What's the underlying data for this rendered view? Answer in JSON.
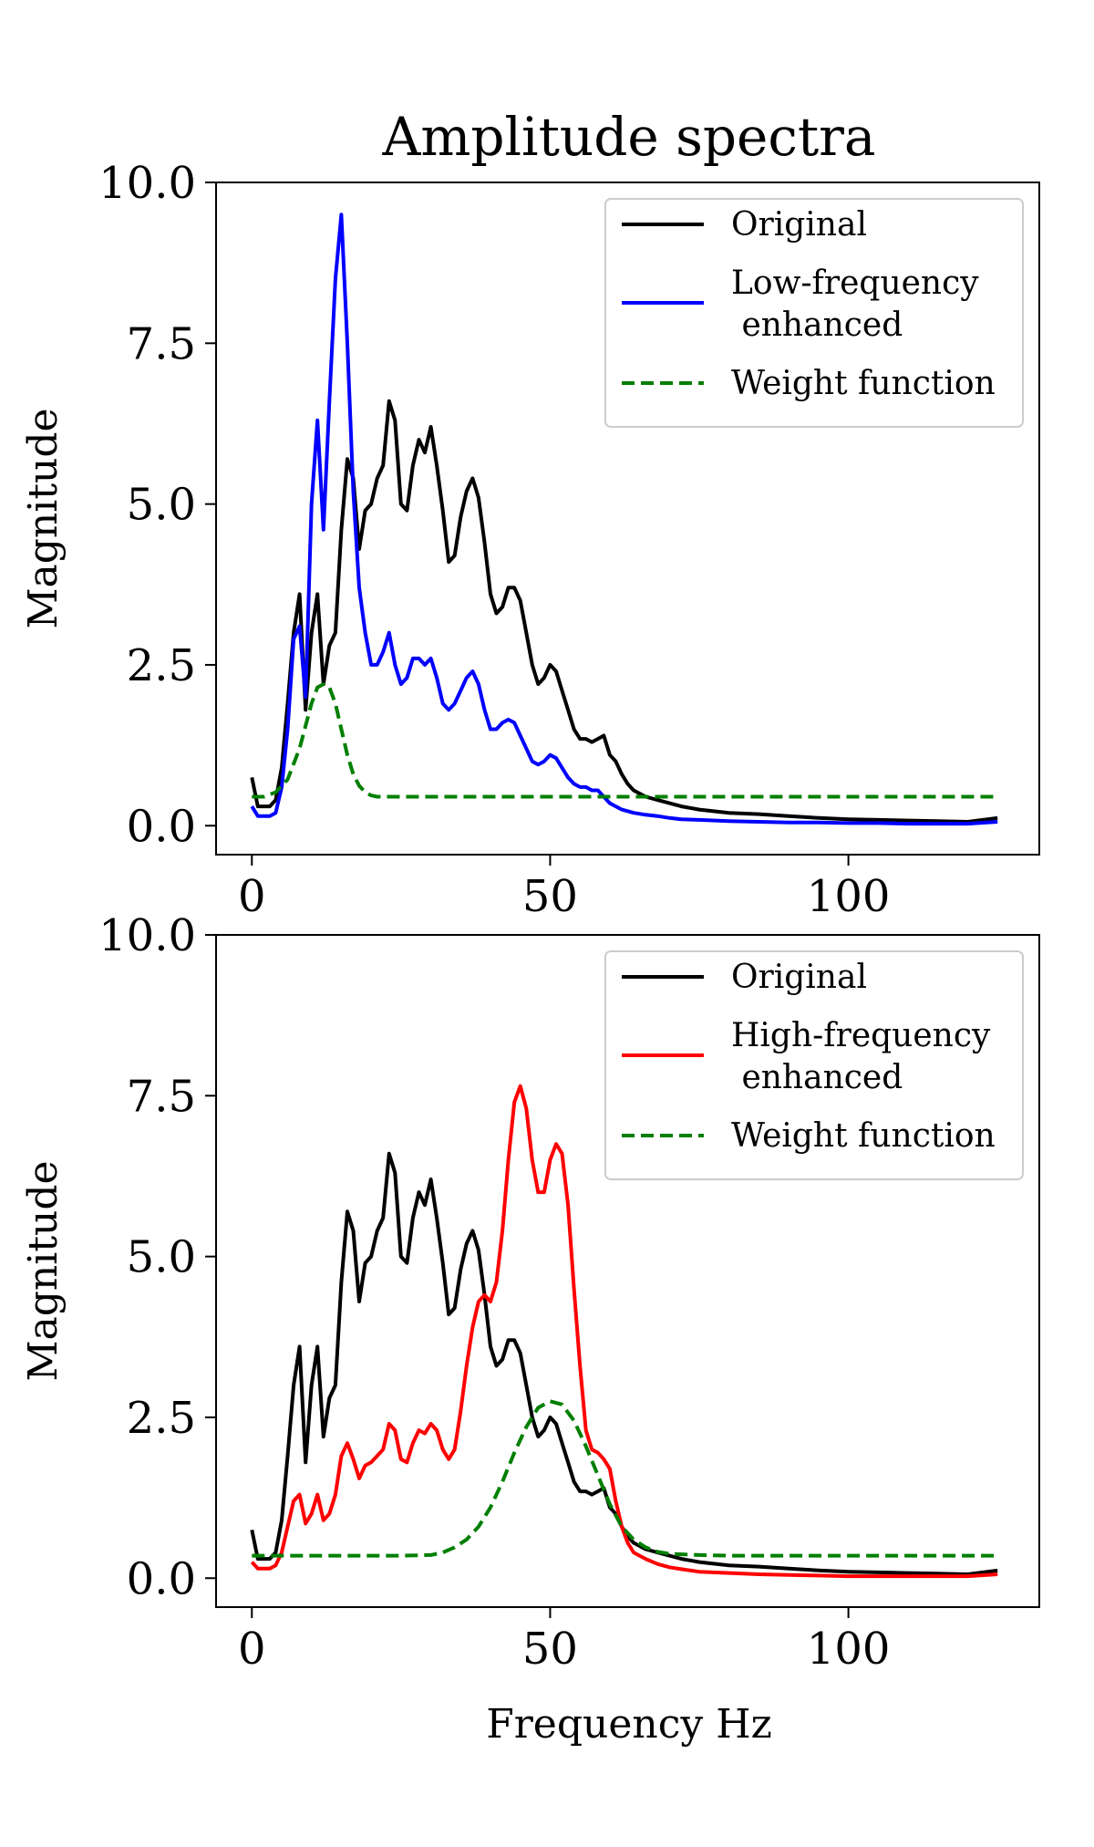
{
  "chart_data": [
    {
      "type": "line",
      "title": "Amplitude spectra",
      "xlabel": "",
      "ylabel": "Magnitude",
      "xlim": [
        -6,
        132
      ],
      "ylim": [
        -0.45,
        10.0
      ],
      "xticks": [
        "0",
        "50",
        "100"
      ],
      "yticks": [
        "0.0",
        "2.5",
        "5.0",
        "7.5",
        "10.0"
      ],
      "legend_position": "top-right",
      "series": [
        {
          "name": "Original",
          "color": "#000000",
          "dash": "solid",
          "x": [
            0,
            1,
            2,
            3,
            4,
            5,
            6,
            7,
            8,
            9,
            10,
            11,
            12,
            13,
            14,
            15,
            16,
            17,
            18,
            19,
            20,
            21,
            22,
            23,
            24,
            25,
            26,
            27,
            28,
            29,
            30,
            31,
            32,
            33,
            34,
            35,
            36,
            37,
            38,
            39,
            40,
            41,
            42,
            43,
            44,
            45,
            46,
            47,
            48,
            49,
            50,
            51,
            52,
            53,
            54,
            55,
            56,
            57,
            58,
            59,
            60,
            61,
            62,
            63,
            64,
            65,
            66,
            68,
            70,
            72,
            75,
            80,
            85,
            90,
            95,
            100,
            105,
            110,
            115,
            120,
            125
          ],
          "y": [
            0.75,
            0.3,
            0.3,
            0.3,
            0.4,
            0.9,
            1.9,
            3.0,
            3.6,
            1.8,
            3.0,
            3.6,
            2.2,
            2.8,
            3.0,
            4.6,
            5.7,
            5.4,
            4.3,
            4.9,
            5.0,
            5.4,
            5.6,
            6.6,
            6.3,
            5.0,
            4.9,
            5.6,
            6.0,
            5.8,
            6.2,
            5.6,
            4.9,
            4.1,
            4.2,
            4.8,
            5.2,
            5.4,
            5.1,
            4.4,
            3.6,
            3.3,
            3.4,
            3.7,
            3.7,
            3.5,
            3.0,
            2.5,
            2.2,
            2.3,
            2.5,
            2.4,
            2.1,
            1.8,
            1.5,
            1.35,
            1.35,
            1.3,
            1.35,
            1.4,
            1.1,
            1.0,
            0.8,
            0.65,
            0.55,
            0.5,
            0.45,
            0.4,
            0.35,
            0.3,
            0.25,
            0.2,
            0.18,
            0.15,
            0.12,
            0.1,
            0.09,
            0.08,
            0.07,
            0.06,
            0.12
          ]
        },
        {
          "name": "Low-frequency\n enhanced",
          "color": "#0000ff",
          "dash": "solid",
          "x": [
            0,
            1,
            2,
            3,
            4,
            5,
            6,
            7,
            8,
            9,
            10,
            11,
            12,
            13,
            14,
            15,
            16,
            17,
            18,
            19,
            20,
            21,
            22,
            23,
            24,
            25,
            26,
            27,
            28,
            29,
            30,
            31,
            32,
            33,
            34,
            35,
            36,
            37,
            38,
            39,
            40,
            41,
            42,
            43,
            44,
            45,
            46,
            47,
            48,
            49,
            50,
            51,
            52,
            53,
            54,
            55,
            56,
            57,
            58,
            59,
            60,
            62,
            64,
            66,
            68,
            70,
            72,
            75,
            80,
            85,
            90,
            95,
            100,
            105,
            110,
            115,
            120,
            125
          ],
          "y": [
            0.3,
            0.15,
            0.15,
            0.15,
            0.2,
            0.6,
            1.5,
            2.9,
            3.1,
            2.0,
            5.0,
            6.3,
            4.6,
            6.6,
            8.5,
            9.5,
            7.5,
            5.2,
            3.7,
            3.0,
            2.5,
            2.5,
            2.7,
            3.0,
            2.5,
            2.2,
            2.3,
            2.6,
            2.6,
            2.5,
            2.6,
            2.3,
            1.9,
            1.8,
            1.9,
            2.1,
            2.3,
            2.4,
            2.2,
            1.8,
            1.5,
            1.5,
            1.6,
            1.65,
            1.6,
            1.4,
            1.2,
            1.0,
            0.95,
            1.0,
            1.1,
            1.05,
            0.9,
            0.75,
            0.65,
            0.6,
            0.6,
            0.55,
            0.55,
            0.45,
            0.35,
            0.25,
            0.2,
            0.17,
            0.15,
            0.12,
            0.1,
            0.09,
            0.07,
            0.06,
            0.05,
            0.05,
            0.04,
            0.04,
            0.03,
            0.03,
            0.03,
            0.06
          ]
        },
        {
          "name": "Weight function",
          "color": "#007f00",
          "dash": "dashed",
          "x": [
            0,
            2,
            4,
            6,
            8,
            10,
            11,
            12,
            13,
            14,
            15,
            16,
            17,
            18,
            19,
            20,
            21,
            22,
            24,
            26,
            30,
            40,
            60,
            80,
            100,
            125
          ],
          "y": [
            0.45,
            0.45,
            0.52,
            0.72,
            1.2,
            1.9,
            2.15,
            2.2,
            2.15,
            1.9,
            1.5,
            1.1,
            0.8,
            0.62,
            0.52,
            0.47,
            0.45,
            0.45,
            0.45,
            0.45,
            0.45,
            0.45,
            0.45,
            0.45,
            0.45,
            0.45
          ]
        }
      ]
    },
    {
      "type": "line",
      "title": "",
      "xlabel": "Frequency Hz",
      "ylabel": "Magnitude",
      "xlim": [
        -6,
        132
      ],
      "ylim": [
        -0.45,
        10.0
      ],
      "xticks": [
        "0",
        "50",
        "100"
      ],
      "yticks": [
        "0.0",
        "2.5",
        "5.0",
        "7.5",
        "10.0"
      ],
      "legend_position": "top-right",
      "series": [
        {
          "name": "Original",
          "color": "#000000",
          "dash": "solid",
          "x": [
            0,
            1,
            2,
            3,
            4,
            5,
            6,
            7,
            8,
            9,
            10,
            11,
            12,
            13,
            14,
            15,
            16,
            17,
            18,
            19,
            20,
            21,
            22,
            23,
            24,
            25,
            26,
            27,
            28,
            29,
            30,
            31,
            32,
            33,
            34,
            35,
            36,
            37,
            38,
            39,
            40,
            41,
            42,
            43,
            44,
            45,
            46,
            47,
            48,
            49,
            50,
            51,
            52,
            53,
            54,
            55,
            56,
            57,
            58,
            59,
            60,
            61,
            62,
            63,
            64,
            65,
            66,
            68,
            70,
            72,
            75,
            80,
            85,
            90,
            95,
            100,
            105,
            110,
            115,
            120,
            125
          ],
          "y": [
            0.75,
            0.3,
            0.3,
            0.3,
            0.4,
            0.9,
            1.9,
            3.0,
            3.6,
            1.8,
            3.0,
            3.6,
            2.2,
            2.8,
            3.0,
            4.6,
            5.7,
            5.4,
            4.3,
            4.9,
            5.0,
            5.4,
            5.6,
            6.6,
            6.3,
            5.0,
            4.9,
            5.6,
            6.0,
            5.8,
            6.2,
            5.6,
            4.9,
            4.1,
            4.2,
            4.8,
            5.2,
            5.4,
            5.1,
            4.4,
            3.6,
            3.3,
            3.4,
            3.7,
            3.7,
            3.5,
            3.0,
            2.5,
            2.2,
            2.3,
            2.5,
            2.4,
            2.1,
            1.8,
            1.5,
            1.35,
            1.35,
            1.3,
            1.35,
            1.4,
            1.1,
            1.0,
            0.8,
            0.65,
            0.55,
            0.5,
            0.45,
            0.4,
            0.35,
            0.3,
            0.25,
            0.2,
            0.18,
            0.15,
            0.12,
            0.1,
            0.09,
            0.08,
            0.07,
            0.06,
            0.12
          ]
        },
        {
          "name": "High-frequency\n enhanced",
          "color": "#ff0000",
          "dash": "solid",
          "x": [
            0,
            1,
            2,
            3,
            4,
            5,
            6,
            7,
            8,
            9,
            10,
            11,
            12,
            13,
            14,
            15,
            16,
            17,
            18,
            19,
            20,
            21,
            22,
            23,
            24,
            25,
            26,
            27,
            28,
            29,
            30,
            31,
            32,
            33,
            34,
            35,
            36,
            37,
            38,
            39,
            40,
            41,
            42,
            43,
            44,
            45,
            46,
            47,
            48,
            49,
            50,
            51,
            52,
            53,
            54,
            55,
            56,
            57,
            58,
            59,
            60,
            61,
            62,
            63,
            64,
            66,
            68,
            70,
            72,
            75,
            80,
            85,
            90,
            95,
            100,
            105,
            110,
            115,
            120,
            125
          ],
          "y": [
            0.25,
            0.15,
            0.15,
            0.15,
            0.2,
            0.4,
            0.8,
            1.2,
            1.3,
            0.85,
            1.0,
            1.3,
            0.9,
            1.0,
            1.3,
            1.9,
            2.1,
            1.85,
            1.55,
            1.75,
            1.8,
            1.9,
            2.0,
            2.4,
            2.3,
            1.85,
            1.8,
            2.1,
            2.3,
            2.25,
            2.4,
            2.3,
            2.0,
            1.85,
            2.0,
            2.6,
            3.3,
            3.9,
            4.3,
            4.4,
            4.3,
            4.6,
            5.4,
            6.5,
            7.4,
            7.65,
            7.3,
            6.5,
            6.0,
            6.0,
            6.5,
            6.75,
            6.6,
            5.8,
            4.5,
            3.3,
            2.3,
            2.0,
            1.95,
            1.85,
            1.7,
            1.2,
            0.8,
            0.55,
            0.4,
            0.3,
            0.22,
            0.17,
            0.14,
            0.1,
            0.08,
            0.06,
            0.05,
            0.04,
            0.03,
            0.03,
            0.03,
            0.03,
            0.03,
            0.06
          ]
        },
        {
          "name": "Weight function",
          "color": "#007f00",
          "dash": "dashed",
          "x": [
            0,
            5,
            10,
            15,
            20,
            25,
            30,
            32,
            34,
            36,
            38,
            40,
            42,
            44,
            46,
            48,
            50,
            52,
            54,
            56,
            58,
            60,
            62,
            64,
            66,
            68,
            70,
            75,
            80,
            90,
            100,
            110,
            125
          ],
          "y": [
            0.35,
            0.35,
            0.35,
            0.35,
            0.35,
            0.35,
            0.36,
            0.4,
            0.48,
            0.6,
            0.8,
            1.1,
            1.5,
            1.95,
            2.35,
            2.65,
            2.75,
            2.7,
            2.45,
            2.05,
            1.6,
            1.15,
            0.8,
            0.6,
            0.48,
            0.41,
            0.38,
            0.36,
            0.35,
            0.35,
            0.35,
            0.35,
            0.35
          ]
        }
      ]
    }
  ]
}
